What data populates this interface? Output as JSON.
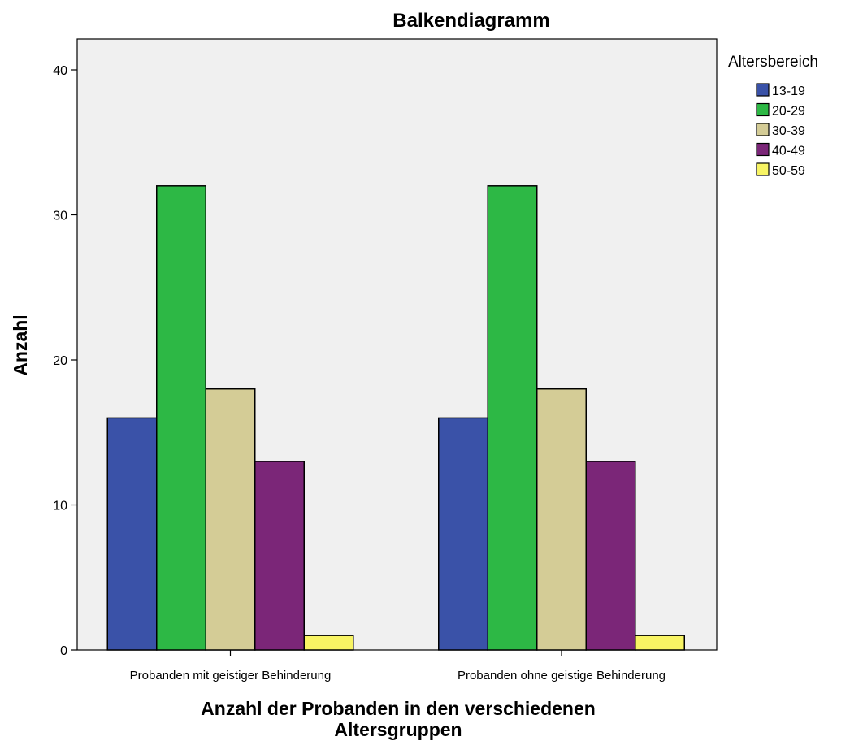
{
  "chart_data": {
    "type": "bar",
    "title": "Balkendiagramm",
    "xlabel_lines": [
      "Anzahl der Probanden in den verschiedenen",
      "Altersgruppen"
    ],
    "ylabel": "Anzahl",
    "categories": [
      "Probanden mit geistiger Behinderung",
      "Probanden ohne geistige Behinderung"
    ],
    "series": [
      {
        "name": "13-19",
        "color": "#3a52a8",
        "values": [
          16,
          16
        ]
      },
      {
        "name": "20-29",
        "color": "#2db845",
        "values": [
          32,
          32
        ]
      },
      {
        "name": "30-39",
        "color": "#d4cc96",
        "values": [
          18,
          18
        ]
      },
      {
        "name": "40-49",
        "color": "#7b2678",
        "values": [
          13,
          13
        ]
      },
      {
        "name": "50-59",
        "color": "#f8f464",
        "values": [
          1,
          1
        ]
      }
    ],
    "ylim": [
      0,
      40
    ],
    "yticks": [
      "0",
      "10",
      "20",
      "30",
      "40"
    ],
    "grid": false,
    "legend_title": "Altersbereich",
    "legend_position": "top-right",
    "plot_background": "#f0f0f0"
  }
}
